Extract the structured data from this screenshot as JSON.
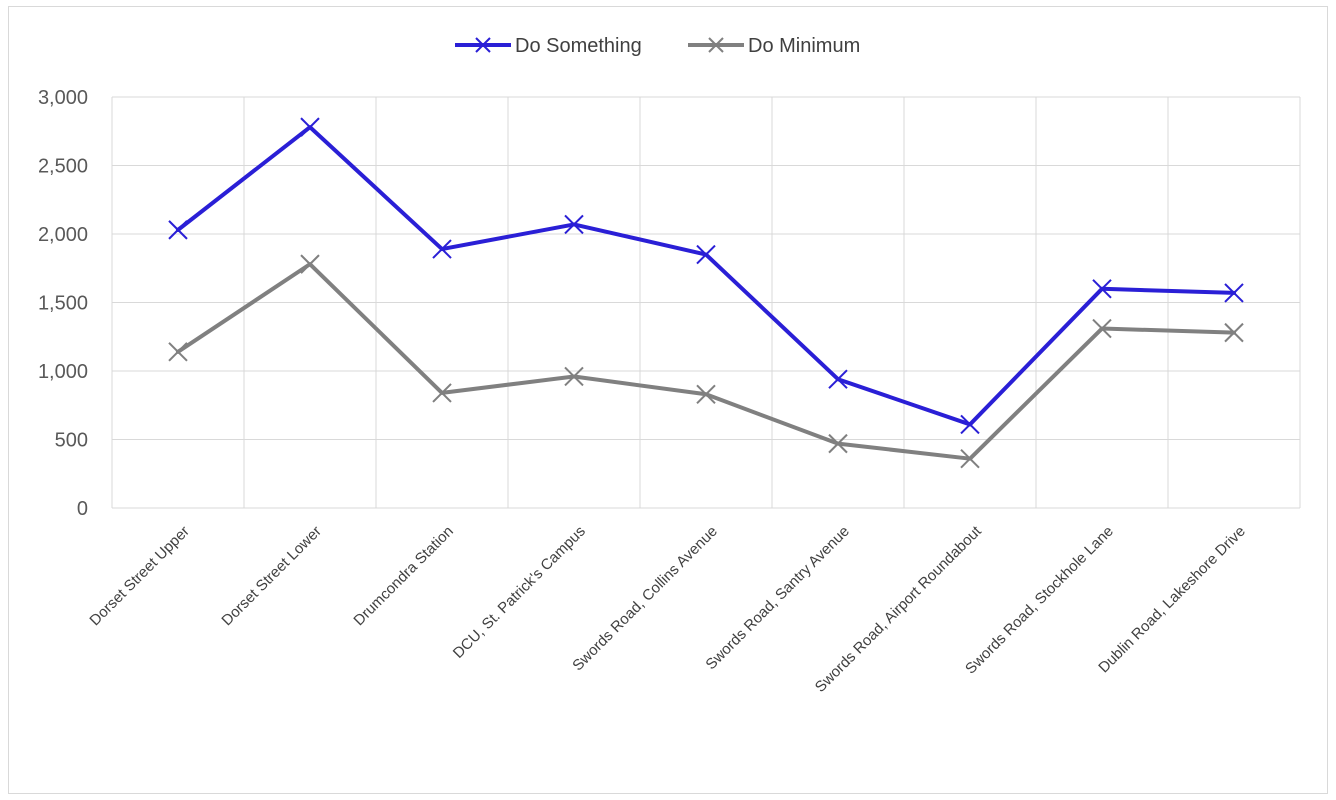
{
  "chart_data": {
    "type": "line",
    "categories": [
      "Dorset Street Upper",
      "Dorset Street Lower",
      "Drumcondra Station",
      "DCU, St. Patrick's Campus",
      "Swords Road, Collins Avenue",
      "Swords Road, Santry Avenue",
      "Swords Road, Airport Roundabout",
      "Swords Road, Stockhole Lane",
      "Dublin Road, Lakeshore Drive"
    ],
    "series": [
      {
        "name": "Do Something",
        "color": "#2a1fd6",
        "values": [
          2030,
          2780,
          1890,
          2070,
          1850,
          940,
          610,
          1600,
          1570
        ]
      },
      {
        "name": "Do Minimum",
        "color": "#808080",
        "values": [
          1140,
          1780,
          840,
          960,
          830,
          470,
          360,
          1310,
          1280
        ]
      }
    ],
    "yticks": [
      "0",
      "500",
      "1,000",
      "1,500",
      "2,000",
      "2,500",
      "3,000"
    ],
    "ylim": [
      0,
      3000
    ],
    "title": "",
    "xlabel": "",
    "ylabel": "",
    "grid": true,
    "legend_position": "top",
    "marker": "x"
  }
}
